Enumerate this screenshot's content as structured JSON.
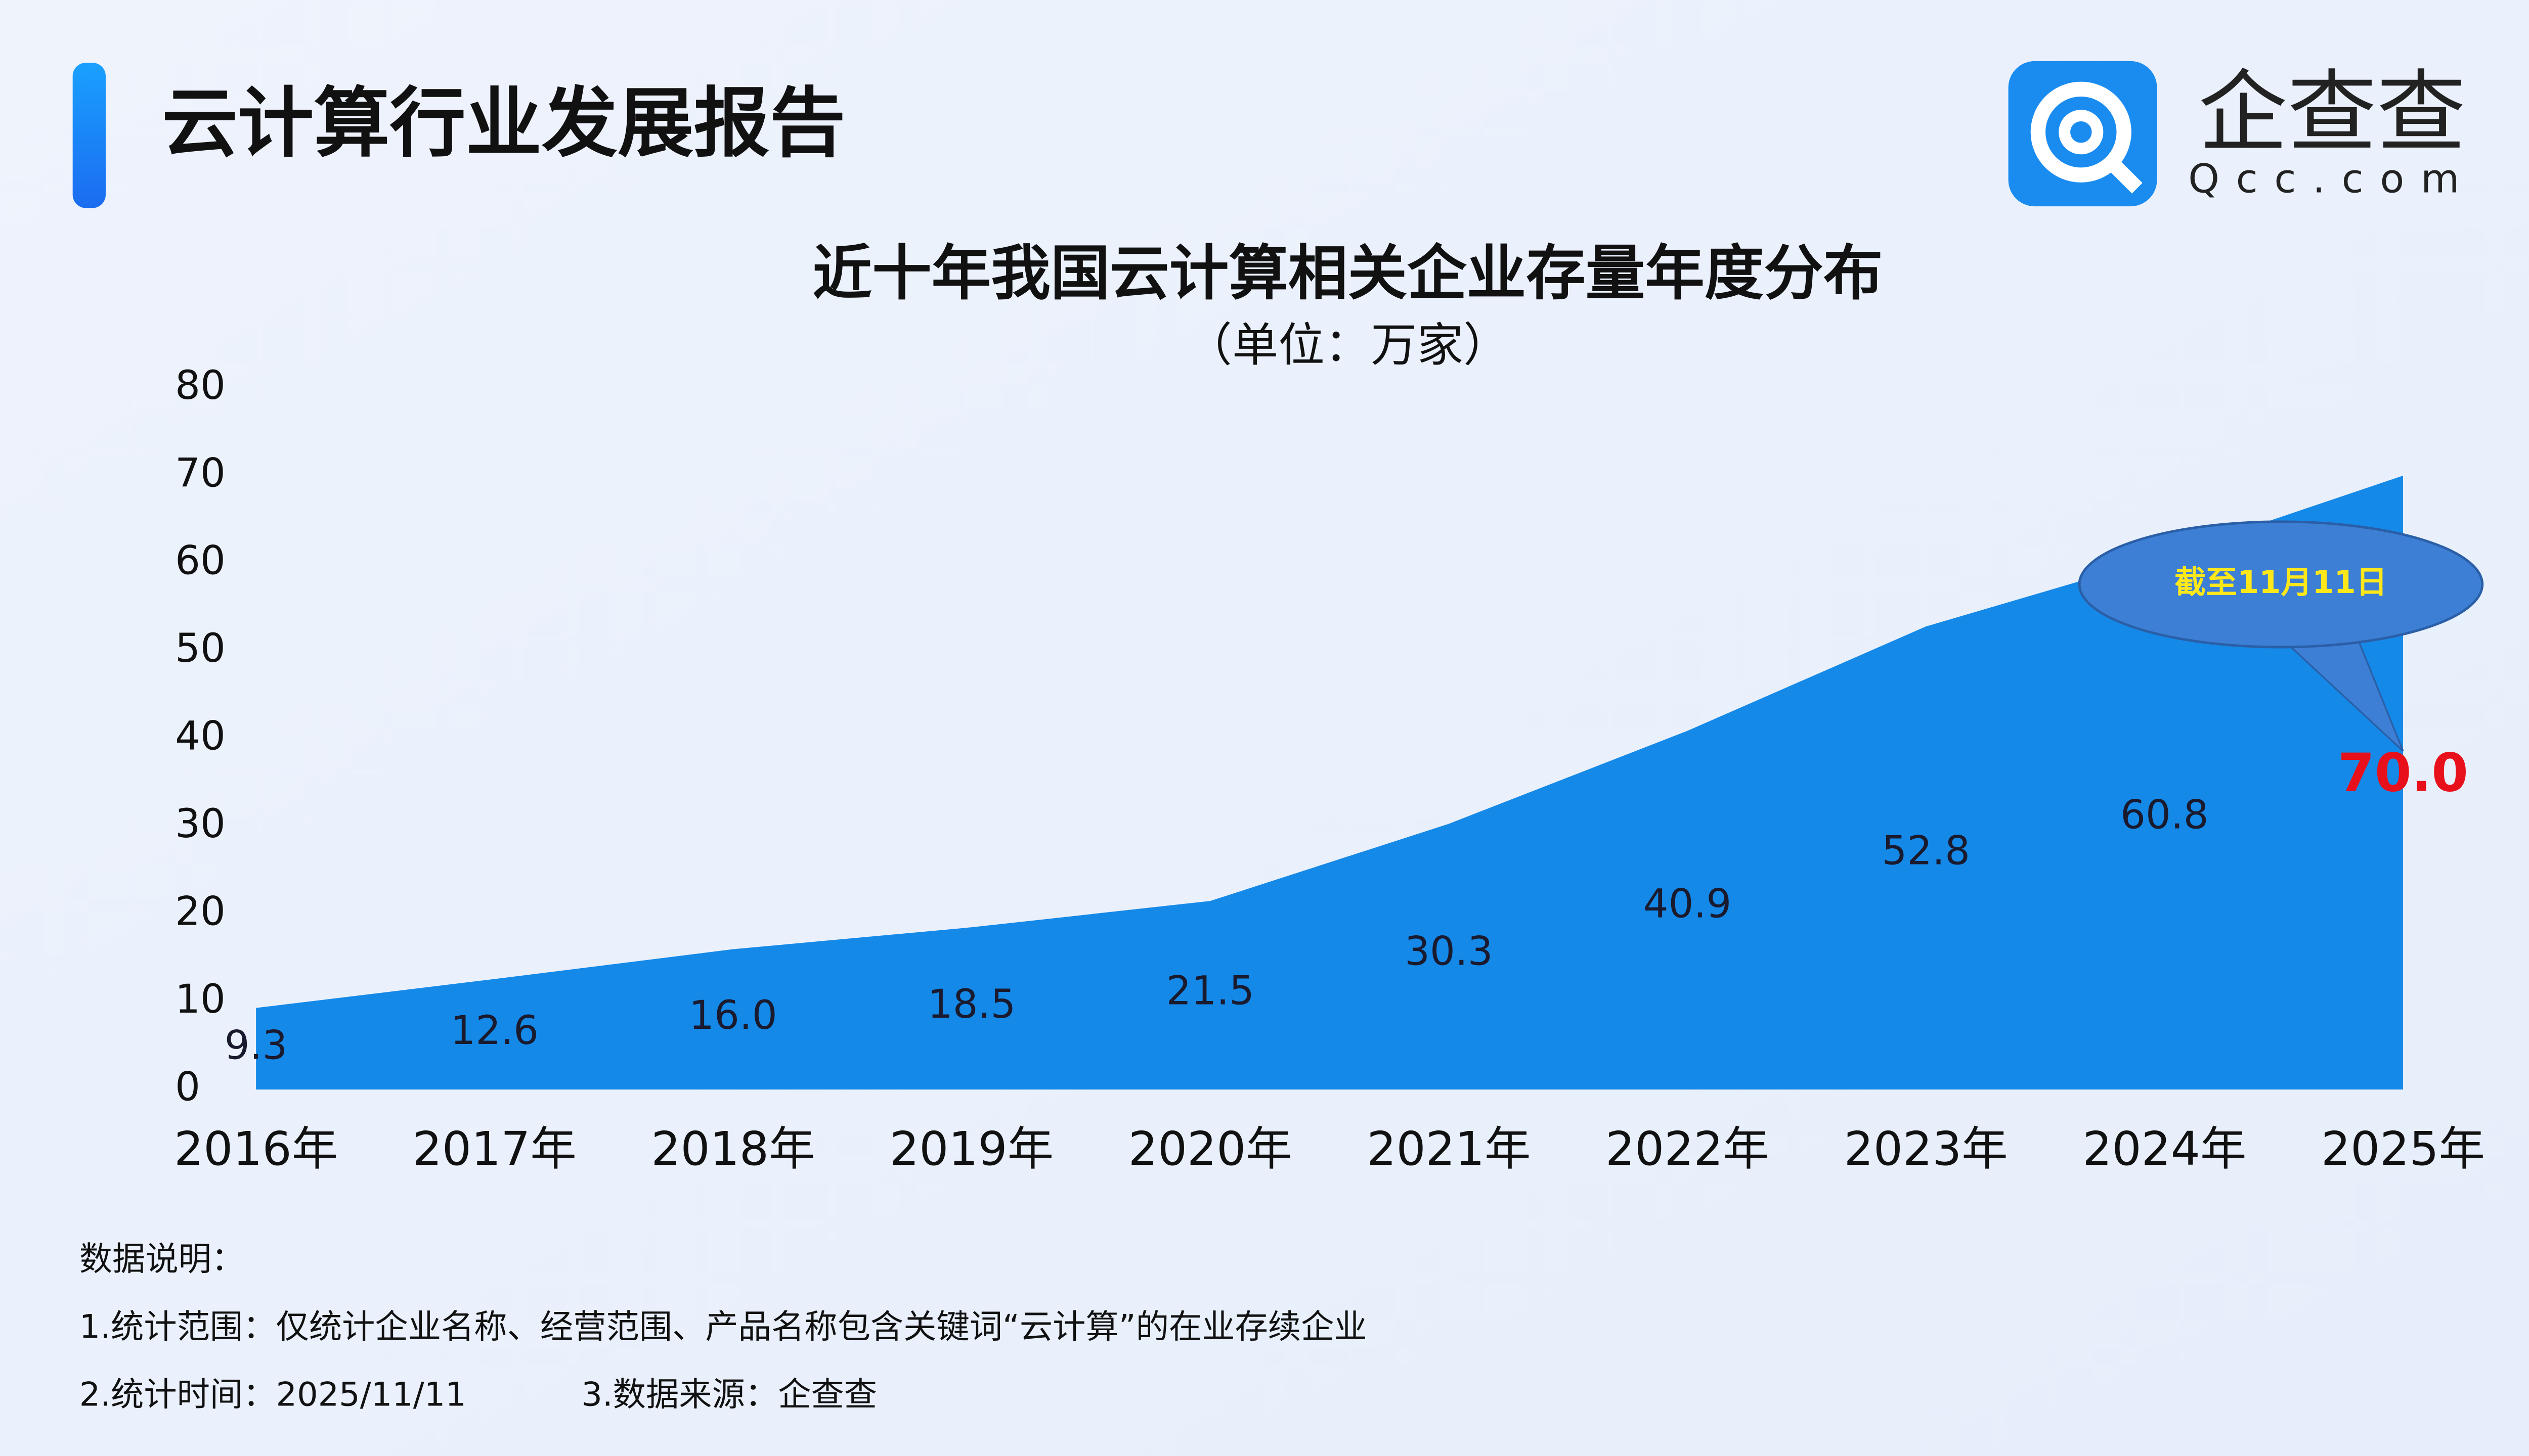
{
  "header": {
    "title": "云计算行业发展报告",
    "brand": "企查查",
    "brand_url": "Qcc.com"
  },
  "chart_data": {
    "type": "area",
    "title": "近十年我国云计算相关企业存量年度分布",
    "subtitle": "（单位：万家）",
    "categories": [
      "2016年",
      "2017年",
      "2018年",
      "2019年",
      "2020年",
      "2021年",
      "2022年",
      "2023年",
      "2024年",
      "2025年"
    ],
    "values": [
      9.3,
      12.6,
      16.0,
      18.5,
      21.5,
      30.3,
      40.9,
      52.8,
      60.8,
      70.0
    ],
    "value_labels": [
      "9.3",
      "12.6",
      "16.0",
      "18.5",
      "21.5",
      "30.3",
      "40.9",
      "52.8",
      "60.8",
      "70.0"
    ],
    "color": "#1589e8",
    "highlight_color": "#e8101a",
    "ylim": [
      0,
      80
    ],
    "yticks": [
      0,
      10,
      20,
      30,
      40,
      50,
      60,
      70,
      80
    ],
    "grid": false,
    "annotation": "截至11月11日"
  },
  "notes": {
    "heading": "数据说明：",
    "lines": [
      "1.统计范围：仅统计企业名称、经营范围、产品名称包含关键词“云计算”的在业存续企业",
      "2.统计时间：2025/11/11",
      "3.数据来源：企查查"
    ]
  }
}
